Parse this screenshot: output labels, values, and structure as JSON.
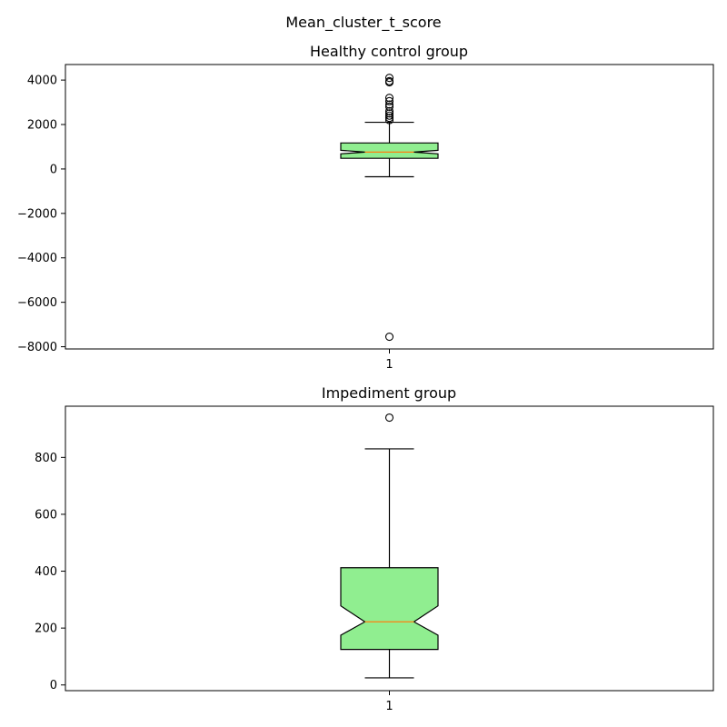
{
  "figure": {
    "suptitle": "Mean_cluster_t_score",
    "background": "#ffffff"
  },
  "colors": {
    "box_fill": "#90ee90",
    "median": "#ff7f0e",
    "edge": "#000000"
  },
  "chart_data": [
    {
      "type": "boxplot",
      "title": "Healthy control group",
      "xlabel": "",
      "ylabel": "",
      "notched": true,
      "ylim": [
        -8100,
        4700
      ],
      "yticks": [
        4000,
        2000,
        0,
        -2000,
        -4000,
        -6000,
        -8000
      ],
      "ytick_labels": [
        "4000",
        "2000",
        "0",
        "−2000",
        "−4000",
        "−6000",
        "−8000"
      ],
      "xtick_labels": [
        "1"
      ],
      "boxes": [
        {
          "whisker_low": -350,
          "q1": 480,
          "median": 760,
          "q3": 1170,
          "whisker_high": 2100,
          "notch_low": 680,
          "notch_high": 840,
          "fliers": [
            -7550,
            2200,
            2300,
            2400,
            2500,
            2600,
            2800,
            2900,
            3050,
            3200,
            3900,
            3950,
            4100
          ]
        }
      ]
    },
    {
      "type": "boxplot",
      "title": "Impediment group",
      "xlabel": "",
      "ylabel": "",
      "notched": true,
      "ylim": [
        -20,
        980
      ],
      "yticks": [
        800,
        600,
        400,
        200,
        0
      ],
      "ytick_labels": [
        "800",
        "600",
        "400",
        "200",
        "0"
      ],
      "xtick_labels": [
        "1"
      ],
      "boxes": [
        {
          "whisker_low": 25,
          "q1": 125,
          "median": 222,
          "q3": 412,
          "whisker_high": 830,
          "notch_low": 175,
          "notch_high": 278,
          "fliers": [
            940
          ]
        }
      ]
    }
  ]
}
